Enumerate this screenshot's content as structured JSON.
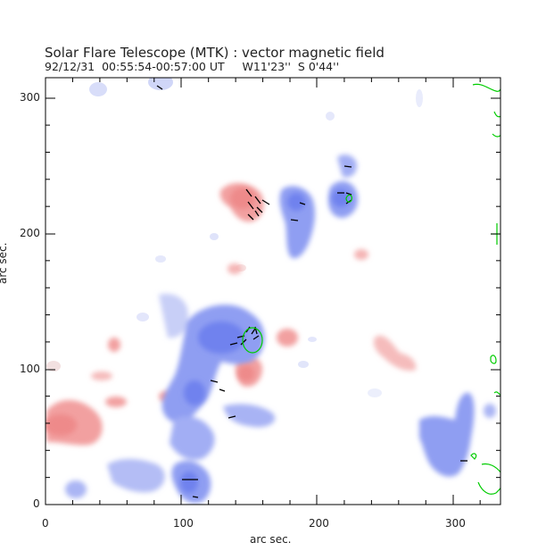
{
  "header": {
    "title": "Solar Flare Telescope (MTK) : vector magnetic field",
    "subtitle": "92/12/31  00:55:54-00:57:00 UT     W11'23''  S 0'44''"
  },
  "axes": {
    "xlabel": "arc sec.",
    "ylabel": "arc sec.",
    "x_ticks": [
      "0",
      "100",
      "200",
      "300"
    ],
    "y_ticks": [
      "0",
      "100",
      "200",
      "300"
    ]
  },
  "colors": {
    "positive_polarity": "#f2a0a0",
    "negative_polarity": "#8f9ef2",
    "contour": "#00cc00",
    "vectors": "#000000"
  },
  "data": {
    "x_range": [
      0,
      335
    ],
    "y_range": [
      0,
      315
    ]
  }
}
